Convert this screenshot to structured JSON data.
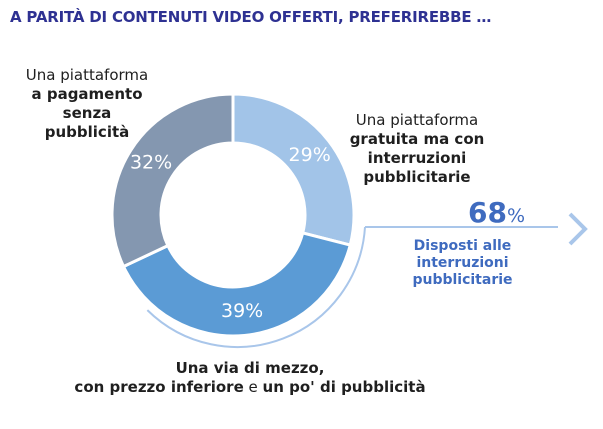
{
  "title": "A PARITÀ DI CONTENUTI VIDEO OFFERTI, PREFERIREBBE …",
  "chart_data": {
    "type": "pie",
    "categories": [
      "Una piattaforma gratuita ma con interruzioni pubblicitarie",
      "Una via di mezzo, con prezzo inferiore e un po' di pubblicità",
      "Una piattaforma a pagamento senza pubblicità"
    ],
    "values": [
      29,
      39,
      32
    ],
    "value_labels": [
      "29%",
      "39%",
      "32%"
    ],
    "colors": [
      "#a2c4e8",
      "#5b9bd5",
      "#8497b0"
    ]
  },
  "labels": {
    "paid": {
      "line1": "Una piattaforma",
      "line2": "a pagamento",
      "line3": "senza",
      "line4": "pubblicità"
    },
    "free": {
      "line1": "Una piattaforma",
      "line2": "gratuita ma con",
      "line3": "interruzioni",
      "line4": "pubblicitarie"
    },
    "middle": {
      "line1": "Una via di mezzo,",
      "part1": "con prezzo inferiore",
      "part2": " e ",
      "part3": "un po' di pubblicità"
    }
  },
  "summary": {
    "value": "68",
    "unit": "%",
    "caption_line1": "Disposti alle",
    "caption_line2": "interruzioni",
    "caption_line3": "pubblicitarie"
  },
  "accent_color": "#3f6bbf"
}
